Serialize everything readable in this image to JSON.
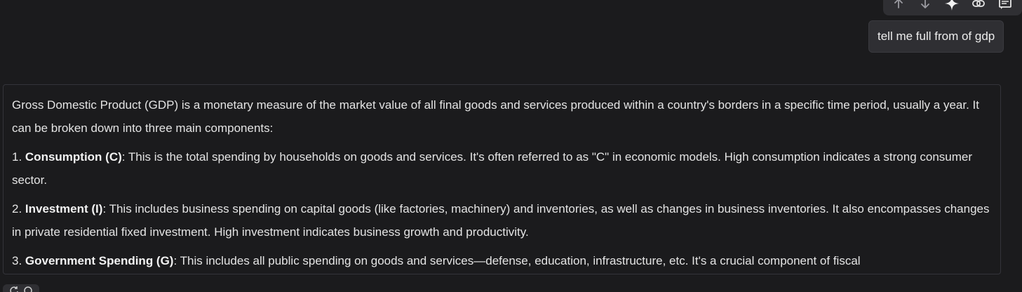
{
  "toolbar": {
    "icons": [
      "arrow-up-icon",
      "arrow-down-icon",
      "sparkle-icon",
      "link-icon",
      "comment-icon"
    ]
  },
  "user_message": {
    "text": "tell me full from of gdp"
  },
  "response": {
    "intro": "Gross Domestic Product (GDP) is a monetary measure of the market value of all final goods and services produced within a country's borders in a specific time period, usually a year. It can be broken down into three main components:",
    "items": [
      {
        "number": "1. ",
        "term": "Consumption (C)",
        "text": ": This is the total spending by households on goods and services. It's often referred to as \"C\" in economic models. High consumption indicates a strong consumer sector."
      },
      {
        "number": "2. ",
        "term": "Investment (I)",
        "text": ": This includes business spending on capital goods (like factories, machinery) and inventories, as well as changes in business inventories. It also encompasses changes in private residential fixed investment. High investment indicates business growth and productivity."
      },
      {
        "number": "3. ",
        "term": "Government Spending (G)",
        "text": ": This includes all public spending on goods and services—defense, education, infrastructure, etc. It's a crucial component of fiscal"
      }
    ]
  },
  "bottom_icons": [
    "refresh-icon",
    "copy-icon"
  ]
}
